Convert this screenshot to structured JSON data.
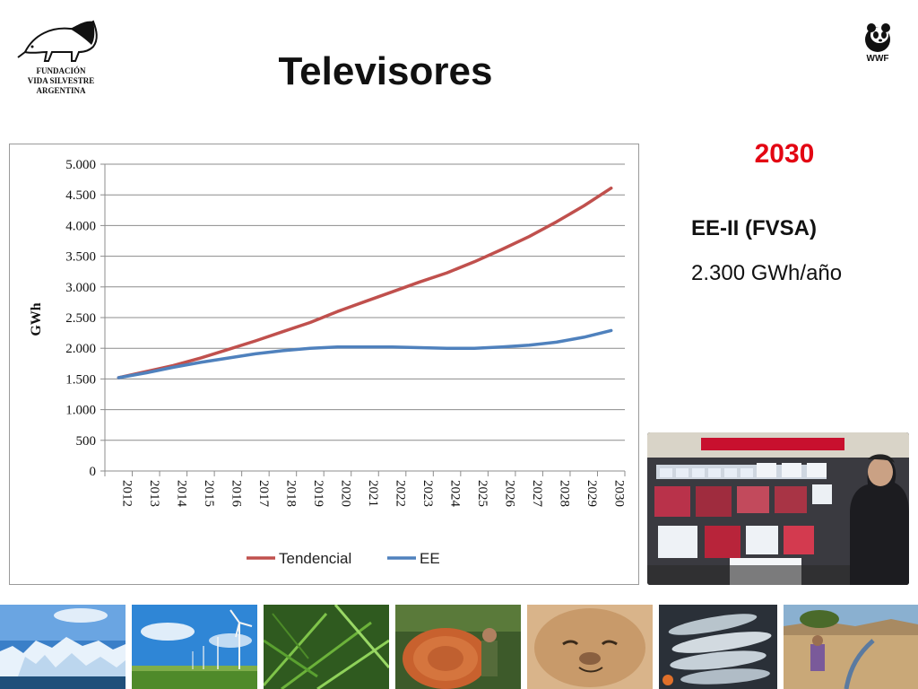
{
  "slide": {
    "title": "Televisores",
    "logos": {
      "fvsa_lines": [
        "FUNDACIÓN",
        "VIDA SILVESTRE",
        "ARGENTINA"
      ],
      "fvsa_icon": "anteater-icon",
      "wwf_text": "WWF",
      "wwf_icon": "panda-icon"
    },
    "side_info": {
      "year": "2030",
      "scenario": "EE-II (FVSA)",
      "value": "2.300 GWh/año"
    },
    "photos": {
      "tv_store": "tv-store-photo",
      "strip": [
        "glacier-photo",
        "wind-farm-photo",
        "fern-photo",
        "logging-photo",
        "sea-lion-photo",
        "fish-photo",
        "dry-land-photo"
      ]
    },
    "colors": {
      "title_accent": "#e30613",
      "tendencial": "#c0504d",
      "ee": "#4f81bd"
    }
  },
  "chart_data": {
    "type": "line",
    "title": "",
    "xlabel": "",
    "ylabel": "GWh",
    "x": [
      "2012",
      "2013",
      "2014",
      "2015",
      "2016",
      "2017",
      "2018",
      "2019",
      "2020",
      "2021",
      "2022",
      "2023",
      "2024",
      "2025",
      "2026",
      "2027",
      "2028",
      "2029",
      "2030"
    ],
    "ylim": [
      0,
      5000
    ],
    "yticks": [
      0,
      500,
      1000,
      1500,
      2000,
      2500,
      3000,
      3500,
      4000,
      4500,
      5000
    ],
    "ytick_labels": [
      "0",
      "500",
      "1.000",
      "1.500",
      "2.000",
      "2.500",
      "3.000",
      "3.500",
      "4.000",
      "4.500",
      "5.000"
    ],
    "grid": true,
    "legend": "bottom",
    "series": [
      {
        "name": "Tendencial",
        "color": "#c0504d",
        "values": [
          1520,
          1620,
          1720,
          1840,
          1980,
          2120,
          2270,
          2420,
          2600,
          2760,
          2920,
          3080,
          3230,
          3410,
          3610,
          3820,
          4060,
          4320,
          4610
        ]
      },
      {
        "name": "EE",
        "color": "#4f81bd",
        "values": [
          1520,
          1600,
          1690,
          1770,
          1840,
          1910,
          1960,
          2000,
          2020,
          2020,
          2020,
          2010,
          2000,
          2000,
          2020,
          2050,
          2100,
          2180,
          2290
        ]
      }
    ]
  }
}
